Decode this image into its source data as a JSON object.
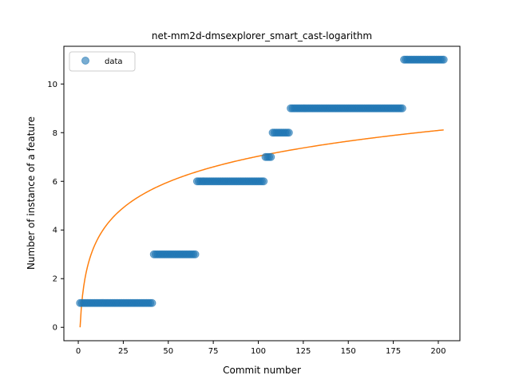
{
  "chart_data": {
    "type": "scatter",
    "title": "net-mm2d-dmsexplorer_smart_cast-logarithm",
    "xlabel": "Commit number",
    "ylabel": "Number of instance of a feature",
    "xlim": [
      -8,
      212
    ],
    "ylim": [
      -0.55,
      11.55
    ],
    "xticks": [
      0,
      25,
      50,
      75,
      100,
      125,
      150,
      175,
      200
    ],
    "yticks": [
      0,
      2,
      4,
      6,
      8,
      10
    ],
    "legend": {
      "placement": "top-left",
      "entries": [
        "data"
      ]
    },
    "colors": {
      "data": "#1f77b4",
      "fit": "#ff7f0e"
    },
    "grid": false,
    "series": [
      {
        "name": "data",
        "kind": "scatter",
        "segments": [
          {
            "x_start": 1,
            "x_end": 41,
            "y": 1
          },
          {
            "x_start": 42,
            "x_end": 65,
            "y": 3
          },
          {
            "x_start": 66,
            "x_end": 103,
            "y": 6
          },
          {
            "x_start": 104,
            "x_end": 107,
            "y": 7
          },
          {
            "x_start": 108,
            "x_end": 117,
            "y": 8
          },
          {
            "x_start": 118,
            "x_end": 180,
            "y": 9
          },
          {
            "x_start": 181,
            "x_end": 203,
            "y": 11
          }
        ]
      },
      {
        "name": "fit",
        "kind": "line",
        "function": "y = a*ln(x) + b",
        "a": 1.527,
        "b": 0,
        "x_range": [
          1,
          203
        ]
      }
    ]
  }
}
